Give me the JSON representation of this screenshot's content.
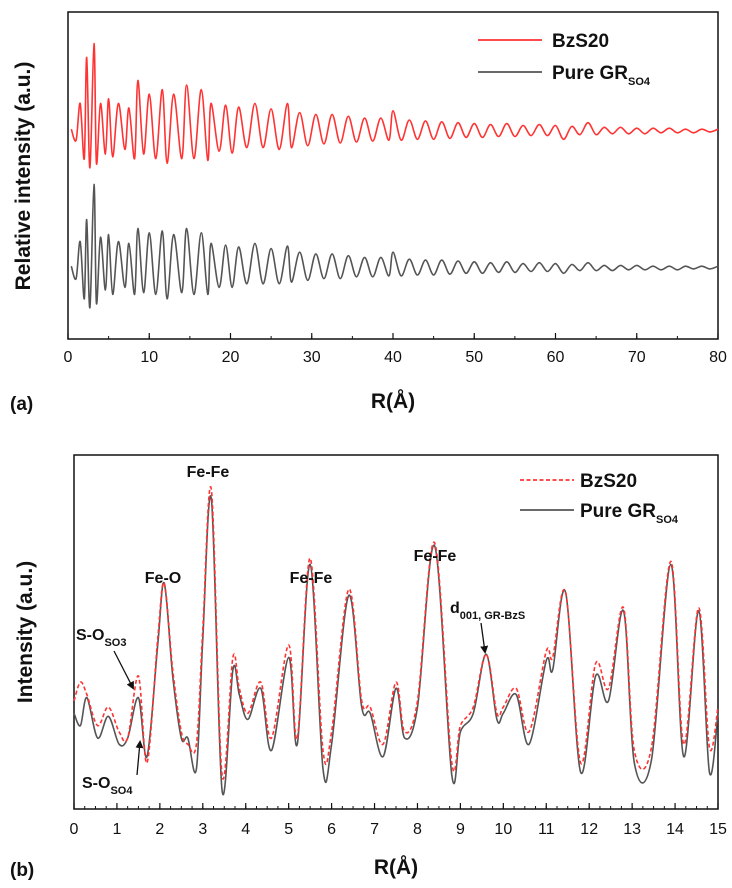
{
  "chart_data": [
    {
      "panel": "(a)",
      "type": "line",
      "xlabel": "R(Å)",
      "ylabel": "Relative intensity (a.u.)",
      "xlim": [
        0,
        80
      ],
      "xticks": [
        "0",
        "10",
        "20",
        "30",
        "40",
        "50",
        "60",
        "70",
        "80"
      ],
      "legend": "top-right",
      "grid": false,
      "series": [
        {
          "name": "BzS20",
          "sub": "",
          "color": "#ff3333",
          "x": [
            0.4,
            1.0,
            1.5,
            2.0,
            2.3,
            2.7,
            3.2,
            3.5,
            4.0,
            4.6,
            5.0,
            5.5,
            6.2,
            7.0,
            7.5,
            8.2,
            8.6,
            9.3,
            10.0,
            10.8,
            11.6,
            12.2,
            13.0,
            14.0,
            14.6,
            15.5,
            16.4,
            17.2,
            17.6,
            18.6,
            19.4,
            20.2,
            21.0,
            22.0,
            23.0,
            24.0,
            25.0,
            26.0,
            27.0,
            27.5,
            28.5,
            29.5,
            30.5,
            31.5,
            32.5,
            33.5,
            34.5,
            35.5,
            36.5,
            37.5,
            38.5,
            39.5,
            40.0,
            41.0,
            42.0,
            43.0,
            44.0,
            45.0,
            46.0,
            47.0,
            48.0,
            49.0,
            50.0,
            51.0,
            52.0,
            53.0,
            54.0,
            55.0,
            56.0,
            57.0,
            58.0,
            59.0,
            60.0,
            61.0,
            62.0,
            63.0,
            64.0,
            65.0,
            66.0,
            67.0,
            68.0,
            69.0,
            70.0,
            71.0,
            72.0,
            73.0,
            74.0,
            75.0,
            76.0,
            77.0,
            78.0,
            79.0,
            80.0
          ],
          "y": [
            0.02,
            -0.1,
            0.3,
            -0.3,
            0.8,
            -0.4,
            0.95,
            -0.35,
            0.3,
            -0.25,
            0.35,
            -0.28,
            0.3,
            -0.2,
            0.25,
            -0.3,
            0.55,
            -0.25,
            0.4,
            -0.3,
            0.45,
            -0.35,
            0.4,
            -0.3,
            0.5,
            -0.3,
            0.45,
            -0.32,
            0.3,
            -0.22,
            0.28,
            -0.24,
            0.26,
            -0.18,
            0.3,
            -0.18,
            0.24,
            -0.2,
            0.3,
            -0.18,
            0.2,
            -0.16,
            0.18,
            -0.14,
            0.18,
            -0.13,
            0.16,
            -0.12,
            0.14,
            -0.11,
            0.14,
            -0.1,
            0.22,
            -0.1,
            0.12,
            -0.09,
            0.11,
            -0.09,
            0.1,
            -0.08,
            0.09,
            -0.07,
            0.08,
            -0.07,
            0.07,
            -0.06,
            0.08,
            -0.06,
            0.06,
            -0.05,
            0.07,
            -0.05,
            0.06,
            -0.09,
            0.05,
            -0.04,
            0.09,
            -0.04,
            0.04,
            -0.03,
            0.04,
            -0.03,
            0.03,
            -0.03,
            0.03,
            -0.02,
            0.03,
            -0.02,
            0.02,
            -0.02,
            0.02,
            -0.01,
            0.02
          ]
        },
        {
          "name": "Pure GR",
          "sub": "SO4",
          "color": "#555555",
          "x": [
            0.4,
            1.0,
            1.5,
            2.0,
            2.3,
            2.7,
            3.2,
            3.5,
            4.0,
            4.6,
            5.0,
            5.5,
            6.2,
            7.0,
            7.5,
            8.2,
            8.6,
            9.3,
            10.0,
            10.8,
            11.6,
            12.2,
            13.0,
            14.0,
            14.6,
            15.5,
            16.4,
            17.2,
            17.6,
            18.6,
            19.4,
            20.2,
            21.0,
            22.0,
            23.0,
            24.0,
            25.0,
            26.0,
            27.0,
            27.5,
            28.5,
            29.5,
            30.5,
            31.5,
            32.5,
            33.5,
            34.5,
            35.5,
            36.5,
            37.5,
            38.5,
            39.5,
            40.0,
            41.0,
            42.0,
            43.0,
            44.0,
            45.0,
            46.0,
            47.0,
            48.0,
            49.0,
            50.0,
            51.0,
            52.0,
            53.0,
            54.0,
            55.0,
            56.0,
            57.0,
            58.0,
            59.0,
            60.0,
            61.0,
            62.0,
            63.0,
            64.0,
            65.0,
            66.0,
            67.0,
            68.0,
            69.0,
            70.0,
            71.0,
            72.0,
            73.0,
            74.0,
            75.0,
            76.0,
            77.0,
            78.0,
            79.0,
            80.0
          ],
          "y": [
            0.02,
            -0.12,
            0.3,
            -0.35,
            0.55,
            -0.45,
            0.95,
            -0.4,
            0.35,
            -0.25,
            0.38,
            -0.3,
            0.3,
            -0.22,
            0.28,
            -0.3,
            0.45,
            -0.28,
            0.4,
            -0.3,
            0.42,
            -0.35,
            0.38,
            -0.28,
            0.45,
            -0.3,
            0.4,
            -0.3,
            0.28,
            -0.22,
            0.26,
            -0.22,
            0.24,
            -0.18,
            0.28,
            -0.18,
            0.22,
            -0.18,
            0.25,
            -0.16,
            0.18,
            -0.14,
            0.16,
            -0.12,
            0.16,
            -0.12,
            0.14,
            -0.1,
            0.12,
            -0.1,
            0.12,
            -0.09,
            0.18,
            -0.09,
            0.1,
            -0.08,
            0.09,
            -0.08,
            0.09,
            -0.07,
            0.08,
            -0.06,
            0.07,
            -0.06,
            0.06,
            -0.05,
            0.07,
            -0.05,
            0.05,
            -0.04,
            0.06,
            -0.04,
            0.05,
            -0.06,
            0.04,
            -0.03,
            0.06,
            -0.03,
            0.03,
            -0.03,
            0.03,
            -0.02,
            0.03,
            -0.02,
            0.02,
            -0.02,
            0.02,
            -0.02,
            0.02,
            -0.01,
            0.02,
            -0.01,
            0.02
          ]
        }
      ]
    },
    {
      "panel": "(b)",
      "type": "line",
      "xlabel": "R(Å)",
      "ylabel": "Intensity (a.u.)",
      "xlim": [
        0,
        15
      ],
      "xticks": [
        "0",
        "1",
        "2",
        "3",
        "4",
        "5",
        "6",
        "7",
        "8",
        "9",
        "10",
        "11",
        "12",
        "13",
        "14",
        "15"
      ],
      "legend": "top-right",
      "grid": false,
      "series": [
        {
          "name": "BzS20",
          "sub": "",
          "color": "#ff3333",
          "dashed": true,
          "x": [
            0.0,
            0.15,
            0.3,
            0.55,
            0.8,
            1.05,
            1.25,
            1.5,
            1.7,
            1.95,
            2.1,
            2.3,
            2.5,
            2.65,
            2.85,
            3.0,
            3.2,
            3.45,
            3.7,
            3.85,
            4.05,
            4.35,
            4.6,
            5.0,
            5.2,
            5.5,
            5.8,
            6.0,
            6.4,
            6.7,
            6.9,
            7.2,
            7.5,
            7.7,
            8.0,
            8.4,
            8.8,
            9.0,
            9.3,
            9.6,
            9.85,
            10.0,
            10.3,
            10.6,
            11.0,
            11.15,
            11.45,
            11.8,
            12.15,
            12.45,
            12.8,
            13.05,
            13.45,
            13.9,
            14.2,
            14.55,
            14.8,
            15.0
          ],
          "y": [
            0.32,
            0.38,
            0.34,
            0.24,
            0.3,
            0.22,
            0.2,
            0.4,
            0.12,
            0.52,
            0.7,
            0.42,
            0.22,
            0.18,
            0.18,
            0.55,
            1.0,
            0.08,
            0.46,
            0.36,
            0.28,
            0.38,
            0.2,
            0.5,
            0.2,
            0.78,
            0.16,
            0.22,
            0.68,
            0.32,
            0.3,
            0.18,
            0.38,
            0.22,
            0.32,
            0.83,
            0.12,
            0.24,
            0.3,
            0.47,
            0.28,
            0.3,
            0.36,
            0.22,
            0.48,
            0.46,
            0.67,
            0.12,
            0.44,
            0.36,
            0.62,
            0.16,
            0.17,
            0.77,
            0.18,
            0.62,
            0.17,
            0.3
          ]
        },
        {
          "name": "Pure GR",
          "sub": "SO4",
          "color": "#555555",
          "dashed": false,
          "x": [
            0.0,
            0.15,
            0.3,
            0.55,
            0.8,
            1.05,
            1.25,
            1.5,
            1.7,
            1.95,
            2.1,
            2.3,
            2.5,
            2.65,
            2.85,
            3.0,
            3.2,
            3.45,
            3.7,
            3.85,
            4.05,
            4.35,
            4.6,
            5.0,
            5.2,
            5.5,
            5.8,
            6.0,
            6.4,
            6.7,
            6.9,
            7.2,
            7.5,
            7.7,
            8.0,
            8.4,
            8.8,
            9.0,
            9.3,
            9.6,
            9.85,
            10.0,
            10.3,
            10.6,
            11.0,
            11.15,
            11.45,
            11.8,
            12.15,
            12.45,
            12.8,
            13.05,
            13.45,
            13.9,
            14.2,
            14.55,
            14.8,
            15.0
          ],
          "y": [
            0.28,
            0.24,
            0.33,
            0.2,
            0.27,
            0.18,
            0.2,
            0.33,
            0.14,
            0.5,
            0.7,
            0.4,
            0.2,
            0.2,
            0.1,
            0.52,
            0.97,
            0.03,
            0.42,
            0.34,
            0.26,
            0.36,
            0.16,
            0.46,
            0.18,
            0.76,
            0.1,
            0.18,
            0.66,
            0.3,
            0.28,
            0.14,
            0.36,
            0.2,
            0.3,
            0.82,
            0.08,
            0.22,
            0.28,
            0.47,
            0.26,
            0.28,
            0.34,
            0.18,
            0.45,
            0.42,
            0.67,
            0.09,
            0.4,
            0.32,
            0.61,
            0.12,
            0.13,
            0.76,
            0.14,
            0.61,
            0.09,
            0.28
          ]
        }
      ],
      "annotations": [
        {
          "text": "Fe-Fe",
          "sub": "",
          "x": 3.2
        },
        {
          "text": "Fe-O",
          "sub": "",
          "x": 2.1
        },
        {
          "text": "Fe-Fe",
          "sub": "",
          "x": 5.5
        },
        {
          "text": "Fe-Fe",
          "sub": "",
          "x": 8.4
        },
        {
          "text": "d",
          "sub": "001, GR-BzS",
          "x": 9.6
        },
        {
          "text": "S-O",
          "sub": "SO3",
          "x": 1.5
        },
        {
          "text": "S-O",
          "sub": "SO4",
          "x": 1.5
        }
      ]
    }
  ]
}
